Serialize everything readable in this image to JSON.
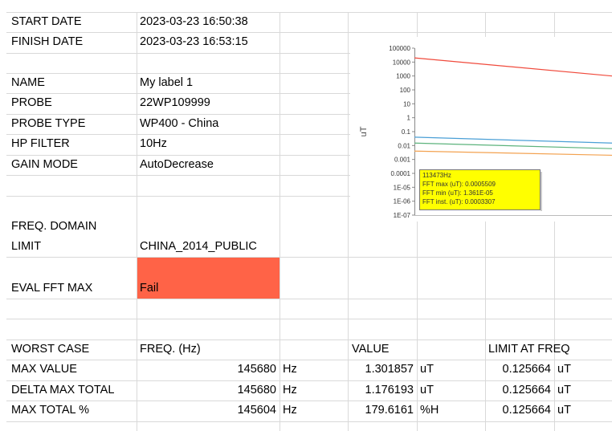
{
  "info": [
    [
      "START DATE",
      "2023-03-23 16:50:38"
    ],
    [
      "FINISH DATE",
      "2023-03-23 16:53:15"
    ],
    [
      "NAME",
      "My label 1"
    ],
    [
      "PROBE",
      "22WP109999"
    ],
    [
      "PROBE TYPE",
      "WP400 - China"
    ],
    [
      "HP FILTER",
      "10Hz"
    ],
    [
      "GAIN MODE",
      "AutoDecrease"
    ]
  ],
  "freq_domain_limit": {
    "label": "FREQ. DOMAIN LIMIT",
    "value": "CHINA_2014_PUBLIC"
  },
  "eval": {
    "label": "EVAL FFT MAX",
    "value": "Fail"
  },
  "worst_case": {
    "header": [
      "WORST CASE",
      "FREQ. (Hz)",
      "VALUE",
      "LIMIT AT FREQ"
    ],
    "rows": [
      {
        "label": "MAX VALUE",
        "freq": 145680,
        "freq_unit": "Hz",
        "value": 1.301857,
        "value_unit": "uT",
        "limit": 0.125664,
        "limit_unit": "uT"
      },
      {
        "label": "DELTA MAX TOTAL",
        "freq": 145680,
        "freq_unit": "Hz",
        "value": 1.176193,
        "value_unit": "uT",
        "limit": 0.125664,
        "limit_unit": "uT"
      },
      {
        "label": "MAX TOTAL %",
        "freq": 145604,
        "freq_unit": "Hz",
        "value": 179.6161,
        "value_unit": "%H",
        "limit": 0.125664,
        "limit_unit": "uT"
      }
    ]
  },
  "chart_data": {
    "type": "line",
    "y_label": "uT",
    "y_scale": "log",
    "categories": [
      null,
      null
    ],
    "ylim": [
      1e-07,
      100000
    ],
    "yticks": [
      100000,
      10000,
      1000,
      100,
      10,
      1,
      0.1,
      0.01,
      0.001,
      0.0001,
      {
        "value": 1e-05,
        "label": "1E-05"
      },
      {
        "value": 1e-06,
        "label": "1E-06"
      },
      {
        "value": 1e-07,
        "label": "1E-07"
      }
    ],
    "series": [
      {
        "color": "#f04a3c",
        "values": [
          20000,
          1000
        ]
      },
      {
        "color": "#4a9fd6",
        "values": [
          0.04,
          0.015
        ]
      },
      {
        "color": "#5cb37c",
        "values": [
          0.015,
          0.006
        ]
      },
      {
        "color": "#f3a250",
        "values": [
          0.004,
          0.002
        ]
      }
    ],
    "annotations": [
      "113473Hz",
      "FFT max (uT): 0.0005509",
      "FFT min (uT): 1.361E-05",
      "FFT inst. (uT): 0.0003307"
    ]
  }
}
